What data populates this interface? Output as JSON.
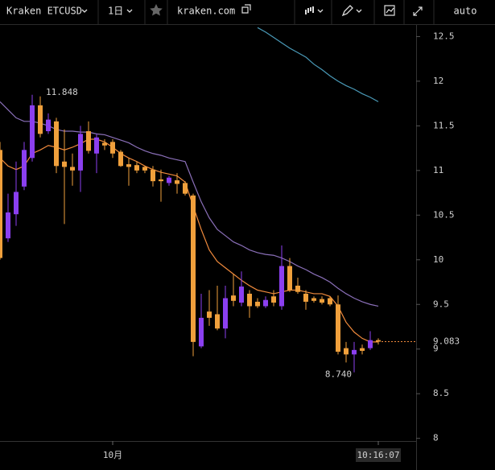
{
  "toolbar": {
    "symbol": "Kraken ETCUSD",
    "interval": "1日",
    "source": "kraken.com",
    "scale_mode": "auto"
  },
  "chart_data": {
    "type": "candlestick",
    "categories": [
      null,
      null,
      null,
      null,
      null,
      null,
      null,
      null,
      null,
      null,
      null,
      null,
      null,
      null,
      "10月",
      null,
      null,
      null,
      null,
      null,
      null,
      null,
      null,
      null,
      null,
      null,
      null,
      null,
      null,
      null,
      null,
      null,
      null,
      null,
      null,
      null,
      null,
      null,
      null,
      null,
      null,
      null,
      null,
      null,
      null,
      null,
      null,
      "10:16:07"
    ],
    "open": [
      11.23,
      10.24,
      10.51,
      10.82,
      11.14,
      11.73,
      11.44,
      11.55,
      11.1,
      11.04,
      11.0,
      11.44,
      11.19,
      11.31,
      11.32,
      11.21,
      11.07,
      11.06,
      11.04,
      11.01,
      10.9,
      10.86,
      10.89,
      10.86,
      10.72,
      9.03,
      9.42,
      9.39,
      9.23,
      9.6,
      9.52,
      9.62,
      9.53,
      9.48,
      9.59,
      9.48,
      9.93,
      9.71,
      9.62,
      9.57,
      9.56,
      9.57,
      9.5,
      9.01,
      8.94,
      9.01,
      9.01,
      9.1
    ],
    "high": [
      11.32,
      10.74,
      11.1,
      11.32,
      11.848,
      11.83,
      11.64,
      11.59,
      11.46,
      11.19,
      11.5,
      11.55,
      11.41,
      11.35,
      11.35,
      11.23,
      11.14,
      11.1,
      11.05,
      11.05,
      11.01,
      10.94,
      10.97,
      10.88,
      10.74,
      9.62,
      9.66,
      9.71,
      9.71,
      9.84,
      9.87,
      9.66,
      9.57,
      9.59,
      9.66,
      10.16,
      10.02,
      9.8,
      9.66,
      9.59,
      9.59,
      9.59,
      9.6,
      9.08,
      9.08,
      9.05,
      9.2,
      9.12
    ],
    "low": [
      10.0,
      10.2,
      10.38,
      10.78,
      11.1,
      11.37,
      11.41,
      10.97,
      10.4,
      10.83,
      10.76,
      11.19,
      10.97,
      11.23,
      11.14,
      11.04,
      10.83,
      10.97,
      10.97,
      10.82,
      10.65,
      10.83,
      10.74,
      10.72,
      8.92,
      9.01,
      9.26,
      9.21,
      9.12,
      9.48,
      9.48,
      9.35,
      9.46,
      9.46,
      9.48,
      9.44,
      9.64,
      9.62,
      9.44,
      9.52,
      9.5,
      9.48,
      8.94,
      8.85,
      8.74,
      8.94,
      8.99,
      9.05
    ],
    "close": [
      10.02,
      10.53,
      10.76,
      11.23,
      11.73,
      11.41,
      11.57,
      11.05,
      11.04,
      11.0,
      11.41,
      11.22,
      11.37,
      11.28,
      11.19,
      11.05,
      11.04,
      11.0,
      11.0,
      10.88,
      10.88,
      10.92,
      10.85,
      10.74,
      9.08,
      9.35,
      9.35,
      9.23,
      9.57,
      9.54,
      9.7,
      9.48,
      9.48,
      9.55,
      9.52,
      9.93,
      9.66,
      9.64,
      9.53,
      9.54,
      9.52,
      9.5,
      8.97,
      8.94,
      8.99,
      8.98,
      9.1,
      9.083
    ],
    "up_color": "#8b3ff0",
    "down_color": "#f0a03c",
    "series": [
      {
        "color": "#f08a3c",
        "values": [
          11.14,
          11.05,
          11.01,
          11.05,
          11.19,
          11.23,
          11.28,
          11.26,
          11.23,
          11.26,
          11.3,
          11.35,
          11.35,
          11.32,
          11.26,
          11.19,
          11.14,
          11.1,
          11.05,
          11.01,
          10.98,
          10.96,
          10.94,
          10.87,
          10.6,
          10.34,
          10.11,
          9.98,
          9.91,
          9.84,
          9.77,
          9.71,
          9.66,
          9.64,
          9.62,
          9.64,
          9.66,
          9.66,
          9.64,
          9.62,
          9.62,
          9.59,
          9.48,
          9.3,
          9.19,
          9.12,
          9.08,
          9.08
        ]
      },
      {
        "color": "#8a6fb8",
        "values": [
          11.77,
          11.68,
          11.59,
          11.55,
          11.55,
          11.53,
          11.5,
          11.46,
          11.44,
          11.44,
          11.43,
          11.43,
          11.41,
          11.4,
          11.37,
          11.34,
          11.31,
          11.26,
          11.22,
          11.19,
          11.17,
          11.14,
          11.12,
          11.1,
          10.87,
          10.65,
          10.47,
          10.34,
          10.27,
          10.2,
          10.16,
          10.11,
          10.08,
          10.06,
          10.05,
          10.02,
          9.98,
          9.93,
          9.89,
          9.84,
          9.8,
          9.75,
          9.68,
          9.62,
          9.57,
          9.53,
          9.5,
          9.48
        ]
      },
      {
        "color": "#4a9ab8",
        "values": [
          null,
          null,
          null,
          null,
          null,
          null,
          null,
          null,
          null,
          null,
          null,
          null,
          null,
          null,
          null,
          null,
          null,
          null,
          null,
          null,
          null,
          null,
          null,
          null,
          null,
          null,
          null,
          null,
          null,
          null,
          null,
          null,
          12.6,
          12.55,
          12.49,
          12.43,
          12.37,
          12.32,
          12.27,
          12.19,
          12.13,
          12.06,
          12.0,
          11.95,
          11.91,
          11.86,
          11.82,
          11.77
        ]
      }
    ],
    "ylim": [
      7.97,
      12.63
    ],
    "yticks": [
      8,
      8.5,
      9,
      9.5,
      10,
      10.5,
      11,
      11.5,
      12,
      12.5
    ],
    "high_label": "11.848",
    "low_label": "8.740",
    "last_price": 9.083,
    "last_price_color": "#f08a3c"
  }
}
